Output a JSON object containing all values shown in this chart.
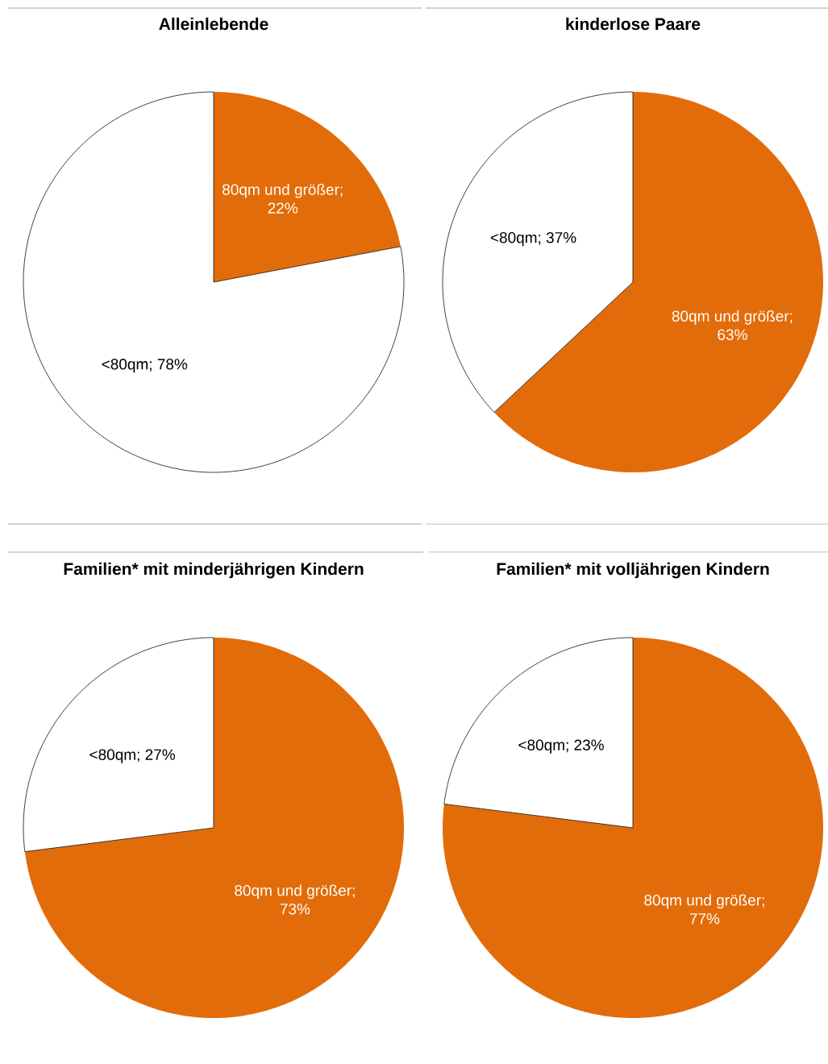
{
  "chart_data": [
    {
      "type": "pie",
      "title": "Alleinlebende",
      "categories": [
        null,
        null
      ],
      "values": [
        22,
        78
      ],
      "colors": [
        "#e36c0a",
        "#ffffff"
      ],
      "value_labels": [
        "80qm und größer; 22%",
        "<80qm; 78%"
      ]
    },
    {
      "type": "pie",
      "title": "kinderlose Paare",
      "categories": [
        null,
        null
      ],
      "values": [
        63,
        37
      ],
      "colors": [
        "#e36c0a",
        "#ffffff"
      ],
      "value_labels": [
        "80qm und größer; 63%",
        "<80qm; 37%"
      ]
    },
    {
      "type": "pie",
      "title": "Familien* mit minderjährigen Kindern",
      "categories": [
        null,
        null
      ],
      "values": [
        73,
        27
      ],
      "colors": [
        "#e36c0a",
        "#ffffff"
      ],
      "value_labels": [
        "80qm und größer; 73%",
        "<80qm; 27%"
      ]
    },
    {
      "type": "pie",
      "title": "Familien* mit volljährigen Kindern",
      "categories": [
        null,
        null
      ],
      "values": [
        77,
        23
      ],
      "colors": [
        "#e36c0a",
        "#ffffff"
      ],
      "value_labels": [
        "80qm und größer; 77%",
        "<80qm; 23%"
      ]
    }
  ]
}
